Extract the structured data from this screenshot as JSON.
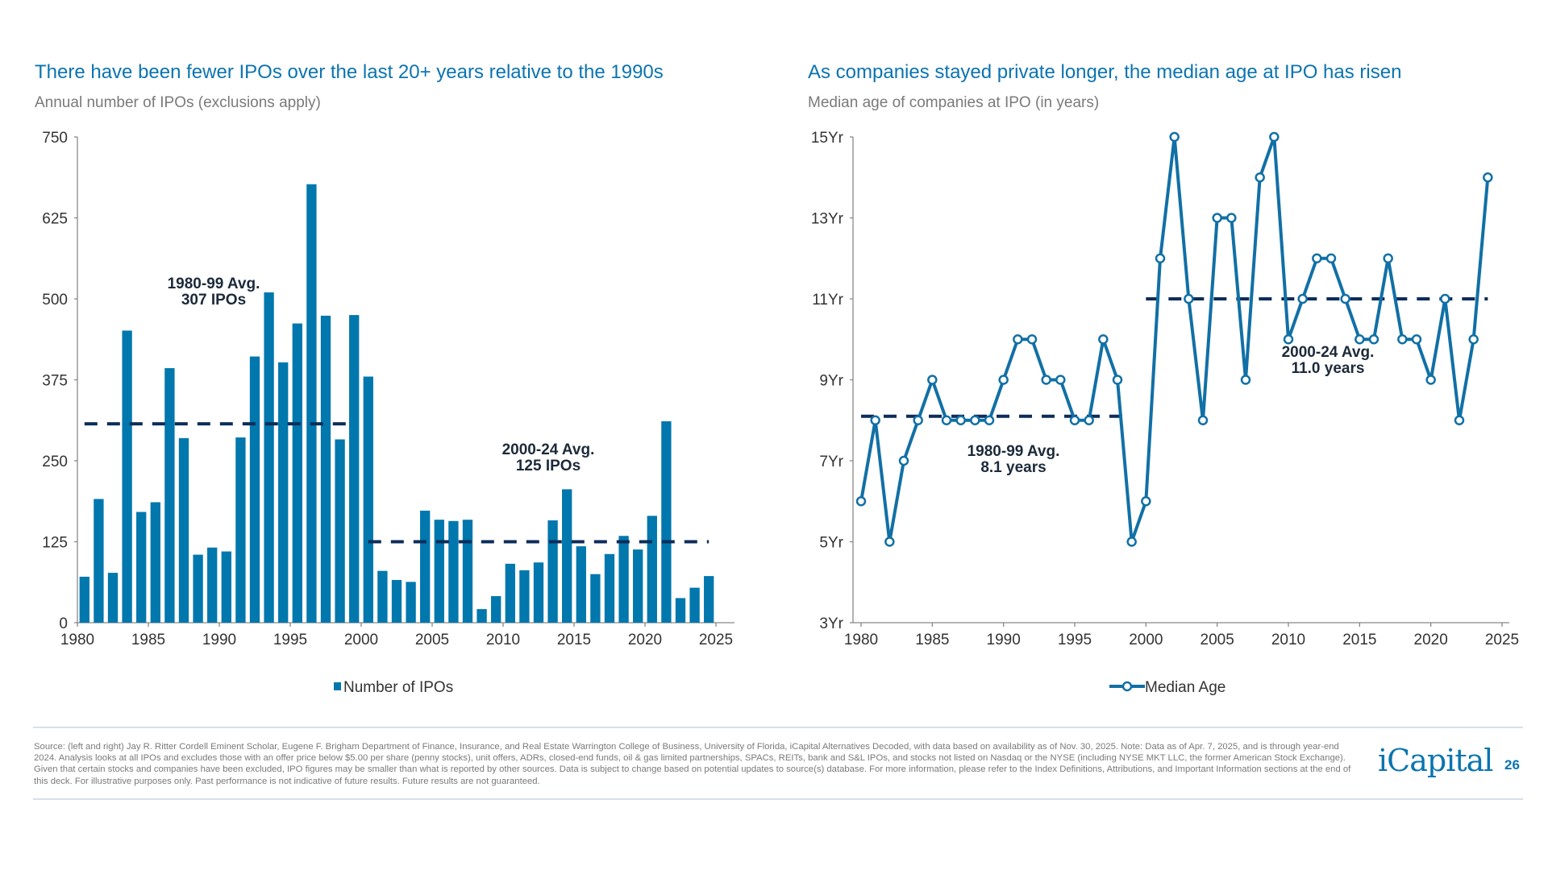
{
  "colors": {
    "bar": "#0077ad",
    "line": "#1170a6",
    "avg_line": "#0d2d5a",
    "title": "#0b74b0",
    "annotation": "#1c2a3a"
  },
  "chart_data": [
    {
      "type": "bar",
      "title": "There have been fewer IPOs over the last 20+ years relative to the 1990s",
      "subtitle": "Annual number of IPOs (exclusions apply)",
      "x": [
        1980,
        1981,
        1982,
        1983,
        1984,
        1985,
        1986,
        1987,
        1988,
        1989,
        1990,
        1991,
        1992,
        1993,
        1994,
        1995,
        1996,
        1997,
        1998,
        1999,
        2000,
        2001,
        2002,
        2003,
        2004,
        2005,
        2006,
        2007,
        2008,
        2009,
        2010,
        2011,
        2012,
        2013,
        2014,
        2015,
        2016,
        2017,
        2018,
        2019,
        2020,
        2021,
        2022,
        2023,
        2024
      ],
      "series": [
        {
          "name": "Number of IPOs",
          "values": [
            71,
            191,
            77,
            451,
            171,
            186,
            393,
            285,
            105,
            116,
            110,
            286,
            411,
            510,
            402,
            462,
            677,
            474,
            283,
            475,
            380,
            80,
            66,
            63,
            173,
            159,
            157,
            159,
            21,
            41,
            91,
            81,
            93,
            158,
            206,
            118,
            75,
            106,
            134,
            113,
            165,
            311,
            38,
            54,
            72
          ]
        }
      ],
      "xlim": [
        1980,
        2025
      ],
      "xticks": [
        "1980",
        "1985",
        "1990",
        "1995",
        "2000",
        "2005",
        "2010",
        "2015",
        "2020",
        "2025"
      ],
      "ylim": [
        0,
        750
      ],
      "yticks": [
        "0",
        "125",
        "250",
        "375",
        "500",
        "625",
        "750"
      ],
      "averages": [
        {
          "from": 1980,
          "to": 1999,
          "value": 307,
          "label_line1": "1980-99 Avg.",
          "label_line2": "307 IPOs"
        },
        {
          "from": 2000,
          "to": 2024,
          "value": 125,
          "label_line1": "2000-24 Avg.",
          "label_line2": "125 IPOs"
        }
      ],
      "legend": "bottom",
      "grid": false
    },
    {
      "type": "line",
      "title": "As companies stayed private longer, the median age at IPO has risen",
      "subtitle": "Median age of companies at IPO (in years)",
      "x": [
        1980,
        1981,
        1982,
        1983,
        1984,
        1985,
        1986,
        1987,
        1988,
        1989,
        1990,
        1991,
        1992,
        1993,
        1994,
        1995,
        1996,
        1997,
        1998,
        1999,
        2000,
        2001,
        2002,
        2003,
        2004,
        2005,
        2006,
        2007,
        2008,
        2009,
        2010,
        2011,
        2012,
        2013,
        2014,
        2015,
        2016,
        2017,
        2018,
        2019,
        2020,
        2021,
        2022,
        2023,
        2024
      ],
      "series": [
        {
          "name": "Median Age",
          "values": [
            6,
            8,
            5,
            7,
            8,
            9,
            8,
            8,
            8,
            8,
            9,
            10,
            10,
            9,
            9,
            8,
            8,
            10,
            9,
            5,
            6,
            12,
            15,
            11,
            8,
            13,
            13,
            9,
            14,
            15,
            10,
            11,
            12,
            12,
            11,
            10,
            10,
            12,
            10,
            10,
            9,
            11,
            8,
            10,
            14
          ]
        }
      ],
      "xlim": [
        1980,
        2025
      ],
      "xticks": [
        "1980",
        "1985",
        "1990",
        "1995",
        "2000",
        "2005",
        "2010",
        "2015",
        "2020",
        "2025"
      ],
      "ylim": [
        3,
        15
      ],
      "yticks": [
        "3Yr",
        "5Yr",
        "7Yr",
        "9Yr",
        "11Yr",
        "13Yr",
        "15Yr"
      ],
      "averages": [
        {
          "from": 1980,
          "to": 1999,
          "value": 8.1,
          "label_line1": "1980-99 Avg.",
          "label_line2": "8.1 years"
        },
        {
          "from": 2000,
          "to": 2024,
          "value": 11.0,
          "label_line1": "2000-24 Avg.",
          "label_line2": "11.0 years"
        }
      ],
      "legend": "bottom",
      "grid": false
    }
  ],
  "footer": {
    "source": "Source: (left and right) Jay R. Ritter Cordell Eminent Scholar, Eugene F. Brigham Department of Finance, Insurance, and Real Estate Warrington College of Business, University of Florida, iCapital Alternatives Decoded, with data based on availability as of Nov. 30, 2025. Note: Data as of Apr. 7, 2025, and is through year-end 2024. Analysis looks at all IPOs and excludes those with an offer price below $5.00 per share (penny stocks), unit offers, ADRs, closed-end funds, oil & gas limited partnerships, SPACs, REITs, bank and S&L IPOs, and stocks not listed on Nasdaq or the NYSE (including NYSE MKT LLC, the former American Stock Exchange). Given that certain stocks and companies have been excluded, IPO figures may be smaller than what is reported by other sources. Data is subject to change based on potential updates to source(s) database. For more information, please refer to the Index Definitions, Attributions, and Important Information sections at the end of this deck. For illustrative purposes only. Past performance is not indicative of future results. Future results are not guaranteed.",
    "logo": "iCapital",
    "page_number": "26"
  }
}
